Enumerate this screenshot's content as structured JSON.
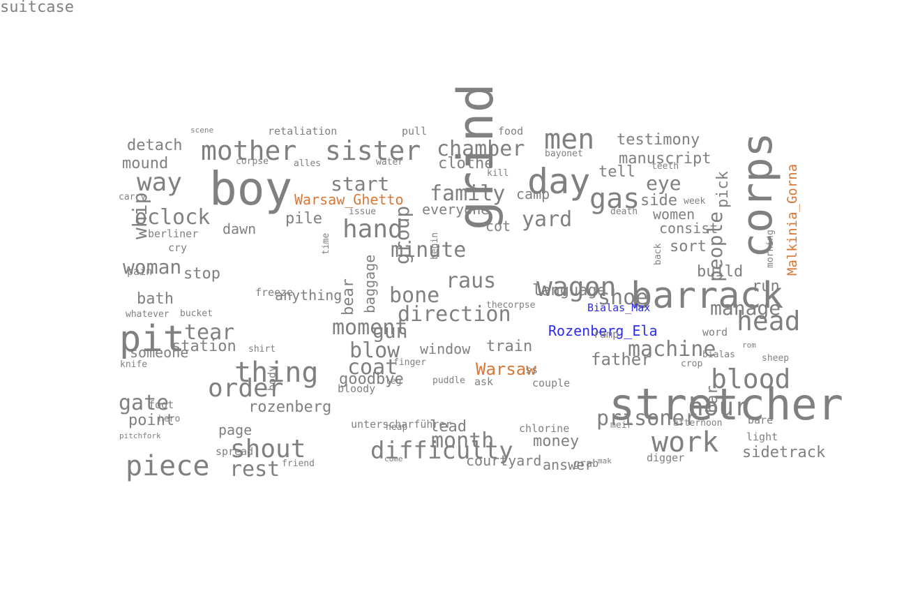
{
  "palette": {
    "default": "#808080",
    "place": "#d97734",
    "person": "#2b2bf0"
  },
  "words": [
    {
      "text": "scene",
      "cat": "default",
      "size": 11
    },
    {
      "text": "retaliation",
      "cat": "default",
      "size": 15
    },
    {
      "text": "pull",
      "cat": "default",
      "size": 15
    },
    {
      "text": "food",
      "cat": "default",
      "size": 15
    },
    {
      "text": "detach",
      "cat": "default",
      "size": 22
    },
    {
      "text": "mother",
      "cat": "default",
      "size": 38
    },
    {
      "text": "sister",
      "cat": "default",
      "size": 38
    },
    {
      "text": "chamber",
      "cat": "default",
      "size": 30
    },
    {
      "text": "men",
      "cat": "default",
      "size": 40
    },
    {
      "text": "testimony",
      "cat": "default",
      "size": 22
    },
    {
      "text": "mound",
      "cat": "default",
      "size": 22
    },
    {
      "text": "corpse",
      "cat": "default",
      "size": 13
    },
    {
      "text": "alles",
      "cat": "default",
      "size": 13
    },
    {
      "text": "water",
      "cat": "default",
      "size": 13
    },
    {
      "text": "bayonet",
      "cat": "default",
      "size": 13
    },
    {
      "text": "manuscript",
      "cat": "default",
      "size": 22
    },
    {
      "text": "corps",
      "cat": "default",
      "size": 60,
      "rot": -90
    },
    {
      "text": "Malkinia_Gorna",
      "cat": "place",
      "size": 19,
      "rot": -90
    },
    {
      "text": "clothe",
      "cat": "default",
      "size": 22
    },
    {
      "text": "teeth",
      "cat": "default",
      "size": 13
    },
    {
      "text": "boy",
      "cat": "default",
      "size": 66
    },
    {
      "text": "way",
      "cat": "default",
      "size": 36
    },
    {
      "text": "day",
      "cat": "default",
      "size": 50
    },
    {
      "text": "kill",
      "cat": "default",
      "size": 13
    },
    {
      "text": "tell",
      "cat": "default",
      "size": 22
    },
    {
      "text": "start",
      "cat": "default",
      "size": 28
    },
    {
      "text": "eye",
      "cat": "default",
      "size": 28
    },
    {
      "text": "pick",
      "cat": "default",
      "size": 22,
      "rot": -90
    },
    {
      "text": "carry",
      "cat": "default",
      "size": 13
    },
    {
      "text": "Warsaw_Ghetto",
      "cat": "place",
      "size": 20
    },
    {
      "text": "family",
      "cat": "default",
      "size": 30
    },
    {
      "text": "camp",
      "cat": "default",
      "size": 20
    },
    {
      "text": "gas",
      "cat": "default",
      "size": 40
    },
    {
      "text": "side",
      "cat": "default",
      "size": 22
    },
    {
      "text": "week",
      "cat": "default",
      "size": 13
    },
    {
      "text": "everyone",
      "cat": "default",
      "size": 20
    },
    {
      "text": "issue",
      "cat": "default",
      "size": 13
    },
    {
      "text": "death",
      "cat": "default",
      "size": 13
    },
    {
      "text": "women",
      "cat": "default",
      "size": 20
    },
    {
      "text": "oclock",
      "cat": "default",
      "size": 30
    },
    {
      "text": "pile",
      "cat": "default",
      "size": 22
    },
    {
      "text": "yard",
      "cat": "default",
      "size": 30
    },
    {
      "text": "cot",
      "cat": "default",
      "size": 20
    },
    {
      "text": "dawn",
      "cat": "default",
      "size": 20
    },
    {
      "text": "hand",
      "cat": "default",
      "size": 36
    },
    {
      "text": "consist",
      "cat": "default",
      "size": 20
    },
    {
      "text": "morning",
      "cat": "default",
      "size": 13,
      "rot": -90
    },
    {
      "text": "berliner",
      "cat": "default",
      "size": 15
    },
    {
      "text": "time",
      "cat": "default",
      "size": 13,
      "rot": -90
    },
    {
      "text": "begin",
      "cat": "default",
      "size": 13,
      "rot": -90
    },
    {
      "text": "grind",
      "cat": "default",
      "size": 70,
      "rot": -90
    },
    {
      "text": "barrack",
      "cat": "default",
      "size": 52
    },
    {
      "text": "whip",
      "cat": "default",
      "size": 28,
      "rot": -90
    },
    {
      "text": "cry",
      "cat": "default",
      "size": 15
    },
    {
      "text": "minute",
      "cat": "default",
      "size": 30
    },
    {
      "text": "sort",
      "cat": "default",
      "size": 22
    },
    {
      "text": "woman",
      "cat": "default",
      "size": 28
    },
    {
      "text": "freeze",
      "cat": "default",
      "size": 15
    },
    {
      "text": "bear",
      "cat": "default",
      "size": 22,
      "rot": -90
    },
    {
      "text": "baggage",
      "cat": "default",
      "size": 20,
      "rot": -90
    },
    {
      "text": "group",
      "cat": "default",
      "size": 28,
      "rot": -90
    },
    {
      "text": "build",
      "cat": "default",
      "size": 22
    },
    {
      "text": "stop",
      "cat": "default",
      "size": 22
    },
    {
      "text": "anything",
      "cat": "default",
      "size": 20
    },
    {
      "text": "back",
      "cat": "default",
      "size": 13,
      "rot": -90
    },
    {
      "text": "pain",
      "cat": "default",
      "size": 15
    },
    {
      "text": "raus",
      "cat": "default",
      "size": 30
    },
    {
      "text": "wagon",
      "cat": "default",
      "size": 38
    },
    {
      "text": "language",
      "cat": "default",
      "size": 22
    },
    {
      "text": "crop",
      "cat": "default",
      "size": 13
    },
    {
      "text": "people",
      "cat": "default",
      "size": 28,
      "rot": -90
    },
    {
      "text": "run",
      "cat": "default",
      "size": 22
    },
    {
      "text": "bone",
      "cat": "default",
      "size": 30
    },
    {
      "text": "shoe",
      "cat": "default",
      "size": 30
    },
    {
      "text": "bath",
      "cat": "default",
      "size": 22
    },
    {
      "text": "direction",
      "cat": "default",
      "size": 30
    },
    {
      "text": "thecorpse",
      "cat": "default",
      "size": 13
    },
    {
      "text": "manage",
      "cat": "default",
      "size": 28
    },
    {
      "text": "whatever",
      "cat": "default",
      "size": 13
    },
    {
      "text": "bucket",
      "cat": "default",
      "size": 13
    },
    {
      "text": "Bialas_Max",
      "cat": "person",
      "size": 15
    },
    {
      "text": "head",
      "cat": "default",
      "size": 38
    },
    {
      "text": "pit",
      "cat": "default",
      "size": 52
    },
    {
      "text": "tear",
      "cat": "default",
      "size": 30
    },
    {
      "text": "moment",
      "cat": "default",
      "size": 30
    },
    {
      "text": "gun",
      "cat": "default",
      "size": 28
    },
    {
      "text": "Rozenberg_Ela",
      "cat": "person",
      "size": 20
    },
    {
      "text": "word",
      "cat": "default",
      "size": 15
    },
    {
      "text": "ramp",
      "cat": "default",
      "size": 15
    },
    {
      "text": "station",
      "cat": "default",
      "size": 22
    },
    {
      "text": "blow",
      "cat": "default",
      "size": 30
    },
    {
      "text": "window",
      "cat": "default",
      "size": 20
    },
    {
      "text": "train",
      "cat": "default",
      "size": 22
    },
    {
      "text": "machine",
      "cat": "default",
      "size": 30
    },
    {
      "text": "rom",
      "cat": "default",
      "size": 11
    },
    {
      "text": "someone",
      "cat": "default",
      "size": 20
    },
    {
      "text": "shirt",
      "cat": "default",
      "size": 13
    },
    {
      "text": "bialas",
      "cat": "default",
      "size": 13
    },
    {
      "text": "sheep",
      "cat": "default",
      "size": 13
    },
    {
      "text": "knife",
      "cat": "default",
      "size": 13
    },
    {
      "text": "thing",
      "cat": "default",
      "size": 40
    },
    {
      "text": "coat",
      "cat": "default",
      "size": 30
    },
    {
      "text": "finger",
      "cat": "default",
      "size": 13
    },
    {
      "text": "Warsaw",
      "cat": "place",
      "size": 24
    },
    {
      "text": "ss",
      "cat": "default",
      "size": 15
    },
    {
      "text": "father",
      "cat": "default",
      "size": 24
    },
    {
      "text": "blood",
      "cat": "default",
      "size": 38
    },
    {
      "text": "order",
      "cat": "default",
      "size": 36
    },
    {
      "text": "goodbye",
      "cat": "default",
      "size": 22
    },
    {
      "text": "leg",
      "cat": "default",
      "size": 13
    },
    {
      "text": "puddle",
      "cat": "default",
      "size": 13
    },
    {
      "text": "ask",
      "cat": "default",
      "size": 15
    },
    {
      "text": "couple",
      "cat": "default",
      "size": 15
    },
    {
      "text": "afternoon",
      "cat": "default",
      "size": 13
    },
    {
      "text": "body",
      "cat": "default",
      "size": 15,
      "rot": -90
    },
    {
      "text": "bloody",
      "cat": "default",
      "size": 15
    },
    {
      "text": "stretcher",
      "cat": "default",
      "size": 62
    },
    {
      "text": "gate",
      "cat": "default",
      "size": 30
    },
    {
      "text": "foot",
      "cat": "default",
      "size": 15
    },
    {
      "text": "rozenberg",
      "cat": "default",
      "size": 22
    },
    {
      "text": "hour",
      "cat": "default",
      "size": 36
    },
    {
      "text": "prisoner",
      "cat": "default",
      "size": 30
    },
    {
      "text": "point",
      "cat": "default",
      "size": 22
    },
    {
      "text": "hero",
      "cat": "default",
      "size": 13
    },
    {
      "text": "spread",
      "cat": "default",
      "size": 15
    },
    {
      "text": "bar",
      "cat": "default",
      "size": 22,
      "rot": -90
    },
    {
      "text": "bare",
      "cat": "default",
      "size": 15
    },
    {
      "text": "page",
      "cat": "default",
      "size": 20
    },
    {
      "text": "unterscharführer",
      "cat": "default",
      "size": 15
    },
    {
      "text": "heap",
      "cat": "default",
      "size": 13
    },
    {
      "text": "lead",
      "cat": "default",
      "size": 22
    },
    {
      "text": "chlorine",
      "cat": "default",
      "size": 15
    },
    {
      "text": "meir",
      "cat": "default",
      "size": 13
    },
    {
      "text": "light",
      "cat": "default",
      "size": 15
    },
    {
      "text": "pitchfork",
      "cat": "default",
      "size": 11
    },
    {
      "text": "month",
      "cat": "default",
      "size": 30
    },
    {
      "text": "work",
      "cat": "default",
      "size": 40
    },
    {
      "text": "shout",
      "cat": "default",
      "size": 36
    },
    {
      "text": "difficulty",
      "cat": "default",
      "size": 34
    },
    {
      "text": "money",
      "cat": "default",
      "size": 22
    },
    {
      "text": "piece",
      "cat": "default",
      "size": 40
    },
    {
      "text": "sidetrack",
      "cat": "default",
      "size": 22
    },
    {
      "text": "rest",
      "cat": "default",
      "size": 30
    },
    {
      "text": "friend",
      "cat": "default",
      "size": 13
    },
    {
      "text": "come",
      "cat": "default",
      "size": 11
    },
    {
      "text": "courtyard",
      "cat": "default",
      "size": 20
    },
    {
      "text": "answer",
      "cat": "default",
      "size": 20
    },
    {
      "text": "grab",
      "cat": "default",
      "size": 15
    },
    {
      "text": "mak",
      "cat": "default",
      "size": 11
    },
    {
      "text": "digger",
      "cat": "default",
      "size": 15
    },
    {
      "text": "suitcase",
      "cat": "default",
      "size": 22
    }
  ]
}
